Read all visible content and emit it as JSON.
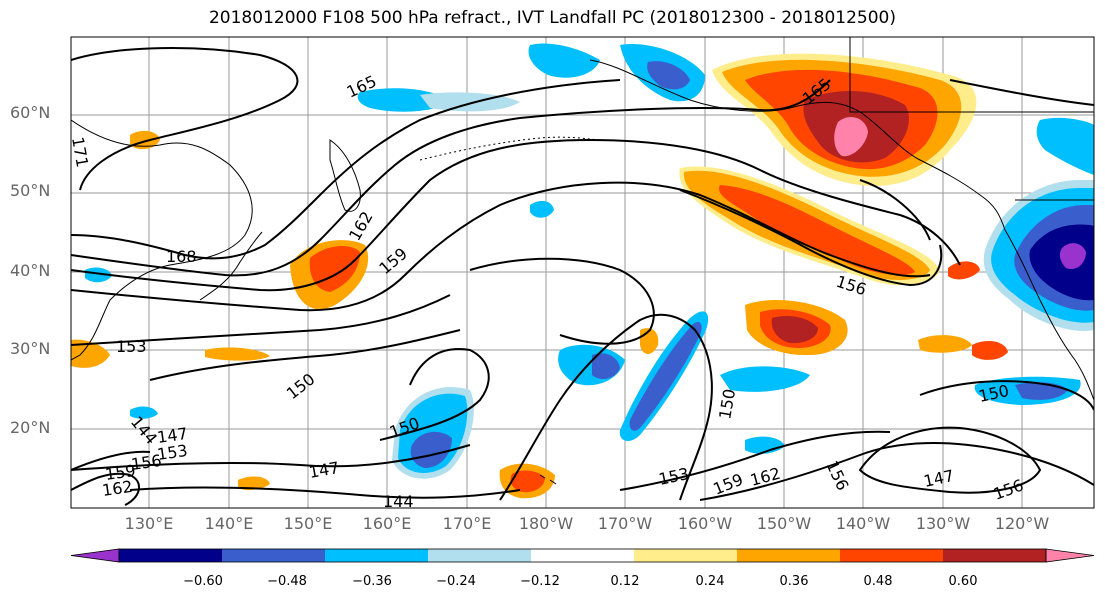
{
  "title": "2018012000 F108 500 hPa refract., IVT Landfall PC (2018012300 - 2018012500)",
  "lat_labels": [
    "60°N",
    "50°N",
    "40°N",
    "30°N",
    "20°N"
  ],
  "lon_labels": [
    "130°E",
    "140°E",
    "150°E",
    "160°E",
    "170°E",
    "180°W",
    "170°W",
    "160°W",
    "150°W",
    "140°W",
    "130°W",
    "120°W"
  ],
  "contour_labels": [
    "165",
    "171",
    "168",
    "162",
    "159",
    "153",
    "150",
    "147",
    "144",
    "156",
    "150",
    "153",
    "159",
    "162",
    "156",
    "150",
    "147",
    "156",
    "165",
    "150",
    "144",
    "147",
    "153",
    "159"
  ],
  "colorbar": {
    "ticks": [
      "−0.60",
      "−0.48",
      "−0.36",
      "−0.24",
      "−0.12",
      "0.12",
      "0.24",
      "0.36",
      "0.48",
      "0.60"
    ],
    "colors": [
      "#9a32cd",
      "#00008b",
      "#3a5fcd",
      "#00bfff",
      "#b2dfee",
      "#ffffff",
      "#ffec8b",
      "#ffa500",
      "#ff4500",
      "#b22222",
      "#ff82ab"
    ]
  }
}
